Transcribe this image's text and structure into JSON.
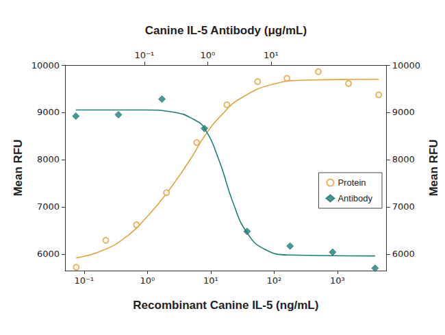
{
  "chart_data": {
    "type": "scatter",
    "log": "x",
    "grid": false,
    "legend": "right",
    "xlabel": "Recombinant Canine IL-5 (ng/mL)",
    "x2label": "Canine IL-5 Antibody (μg/mL)",
    "ylabel": "Mean RFU",
    "y2label": "Mean RFU",
    "xlim": [
      0.05,
      6000
    ],
    "xticks": [
      {
        "value": 0.1,
        "label": "10⁻¹"
      },
      {
        "value": 1,
        "label": "10⁰"
      },
      {
        "value": 10,
        "label": "10¹"
      },
      {
        "value": 100,
        "label": "10²"
      },
      {
        "value": 1000,
        "label": "10³"
      }
    ],
    "x2lim": [
      0.0056,
      670
    ],
    "x2ticks": [
      {
        "value": 0.1,
        "label": "10⁻¹"
      },
      {
        "value": 1,
        "label": "10⁰"
      },
      {
        "value": 10,
        "label": "10¹"
      }
    ],
    "ylim": [
      5650,
      10000
    ],
    "yticks": [
      6000,
      7000,
      8000,
      9000,
      10000
    ],
    "y2lim": [
      5650,
      10000
    ],
    "y2ticks": [
      6000,
      7000,
      8000,
      9000,
      10000
    ],
    "series": [
      {
        "name": "Protein",
        "type": "scatter",
        "marker": "open_circle",
        "color": "#E3A33B",
        "x": [
          0.075,
          0.22,
          0.67,
          2,
          6,
          18,
          55,
          160,
          500,
          1500,
          4500
        ],
        "values": [
          5720,
          6290,
          6620,
          7300,
          8360,
          9160,
          9650,
          9720,
          9860,
          9610,
          9370
        ]
      },
      {
        "name": "Antibody",
        "type": "scatter",
        "marker": "diamond",
        "color": "#1B7C77",
        "axis": "y2",
        "x": [
          0.0083,
          0.039,
          0.19,
          0.89,
          4.2,
          20,
          94,
          440
        ],
        "values": [
          8920,
          8950,
          9280,
          8660,
          6480,
          6170,
          6040,
          5700
        ]
      },
      {
        "type": "line",
        "color": "#E3A33B",
        "x": [
          0.075,
          0.2,
          0.5,
          1,
          2,
          5,
          8,
          15,
          30,
          100,
          300,
          4500
        ],
        "values": [
          5920,
          6080,
          6400,
          6800,
          7280,
          8050,
          8500,
          8950,
          9300,
          9600,
          9680,
          9700
        ]
      },
      {
        "type": "line",
        "color": "#1B7C77",
        "axis": "y2",
        "x": [
          0.0083,
          0.1,
          0.3,
          0.6,
          0.89,
          1.5,
          2.5,
          4.2,
          8,
          20,
          440
        ],
        "values": [
          9050,
          9050,
          9000,
          8850,
          8660,
          8000,
          7100,
          6450,
          6100,
          5980,
          5960
        ]
      }
    ]
  }
}
